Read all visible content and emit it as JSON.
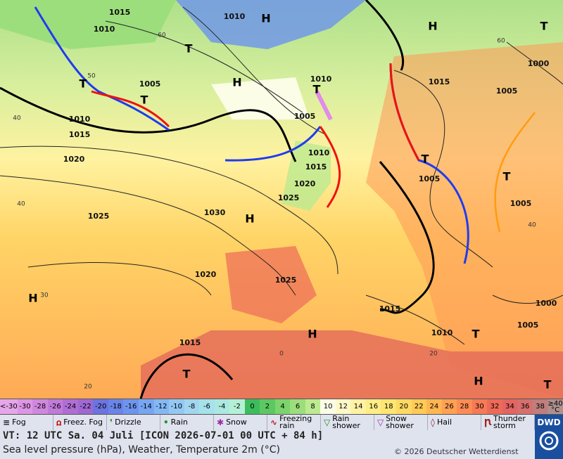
{
  "map": {
    "pressure_labels": [
      "1015",
      "1010",
      "1010",
      "1005",
      "1010",
      "1015",
      "1020",
      "1025",
      "1030",
      "1020",
      "1025",
      "1010",
      "1005",
      "1010",
      "1015",
      "1020",
      "1025",
      "1015",
      "1005",
      "1000",
      "1005",
      "1005",
      "1015",
      "1010",
      "1005",
      "1000",
      "1015"
    ],
    "highs": [
      "H",
      "H",
      "H",
      "H",
      "H",
      "H",
      "H"
    ],
    "lows": [
      "T",
      "T",
      "T",
      "T",
      "T",
      "T",
      "T",
      "T",
      "T",
      "T"
    ],
    "latitude_labels": [
      "60",
      "50",
      "40",
      "40",
      "30",
      "20",
      "60",
      "40",
      "20",
      "0"
    ]
  },
  "scale": {
    "cells": [
      {
        "label": "<-30",
        "color": "#e6a6ea"
      },
      {
        "label": "-30",
        "color": "#dc96e4"
      },
      {
        "label": "-28",
        "color": "#cf88de"
      },
      {
        "label": "-26",
        "color": "#c07ad8"
      },
      {
        "label": "-24",
        "color": "#b06ed4"
      },
      {
        "label": "-22",
        "color": "#9f68d2"
      },
      {
        "label": "-20",
        "color": "#6c74e0"
      },
      {
        "label": "-18",
        "color": "#6a84e8"
      },
      {
        "label": "-16",
        "color": "#6e94ee"
      },
      {
        "label": "-14",
        "color": "#76a6f2"
      },
      {
        "label": "-12",
        "color": "#84b8f4"
      },
      {
        "label": "-10",
        "color": "#94c8f4"
      },
      {
        "label": "-8",
        "color": "#a2d6f0"
      },
      {
        "label": "-6",
        "color": "#a6e2ea"
      },
      {
        "label": "-4",
        "color": "#ace8e0"
      },
      {
        "label": "-2",
        "color": "#b4f0d6"
      },
      {
        "label": "0",
        "color": "#3cbc5c"
      },
      {
        "label": "2",
        "color": "#5cc862"
      },
      {
        "label": "4",
        "color": "#7cd46c"
      },
      {
        "label": "6",
        "color": "#9cde7c"
      },
      {
        "label": "8",
        "color": "#bcea90"
      },
      {
        "label": "10",
        "color": "#fbfde6"
      },
      {
        "label": "12",
        "color": "#fff8c8"
      },
      {
        "label": "14",
        "color": "#fff2a4"
      },
      {
        "label": "16",
        "color": "#ffee86"
      },
      {
        "label": "18",
        "color": "#ffe672"
      },
      {
        "label": "20",
        "color": "#ffda62"
      },
      {
        "label": "22",
        "color": "#ffca56"
      },
      {
        "label": "24",
        "color": "#ffb652"
      },
      {
        "label": "26",
        "color": "#ffa052"
      },
      {
        "label": "28",
        "color": "#fd8c54"
      },
      {
        "label": "30",
        "color": "#f67a56"
      },
      {
        "label": "32",
        "color": "#ee6a58"
      },
      {
        "label": "34",
        "color": "#e46462"
      },
      {
        "label": "36",
        "color": "#d6706e"
      },
      {
        "label": "38",
        "color": "#c07e7c"
      },
      {
        "label": "≥40 °C",
        "color": "#ae908e"
      }
    ]
  },
  "legend": {
    "items": [
      "Fog",
      "Freez. Fog",
      "Drizzle",
      "Rain",
      "Snow",
      "Freezing rain",
      "Rain shower",
      "Snow shower",
      "Hail",
      "Thunder storm"
    ]
  },
  "footer": {
    "valid_time": "VT: 12 UTC Sa.  04 Juli [ICON 2026-07-01  00 UTC + 84 h]",
    "description": "Sea level pressure (hPa), Weather, Temperature 2m (°C)",
    "copyright": "© 2026 Deutscher Wetterdienst",
    "logo": "DWD"
  }
}
